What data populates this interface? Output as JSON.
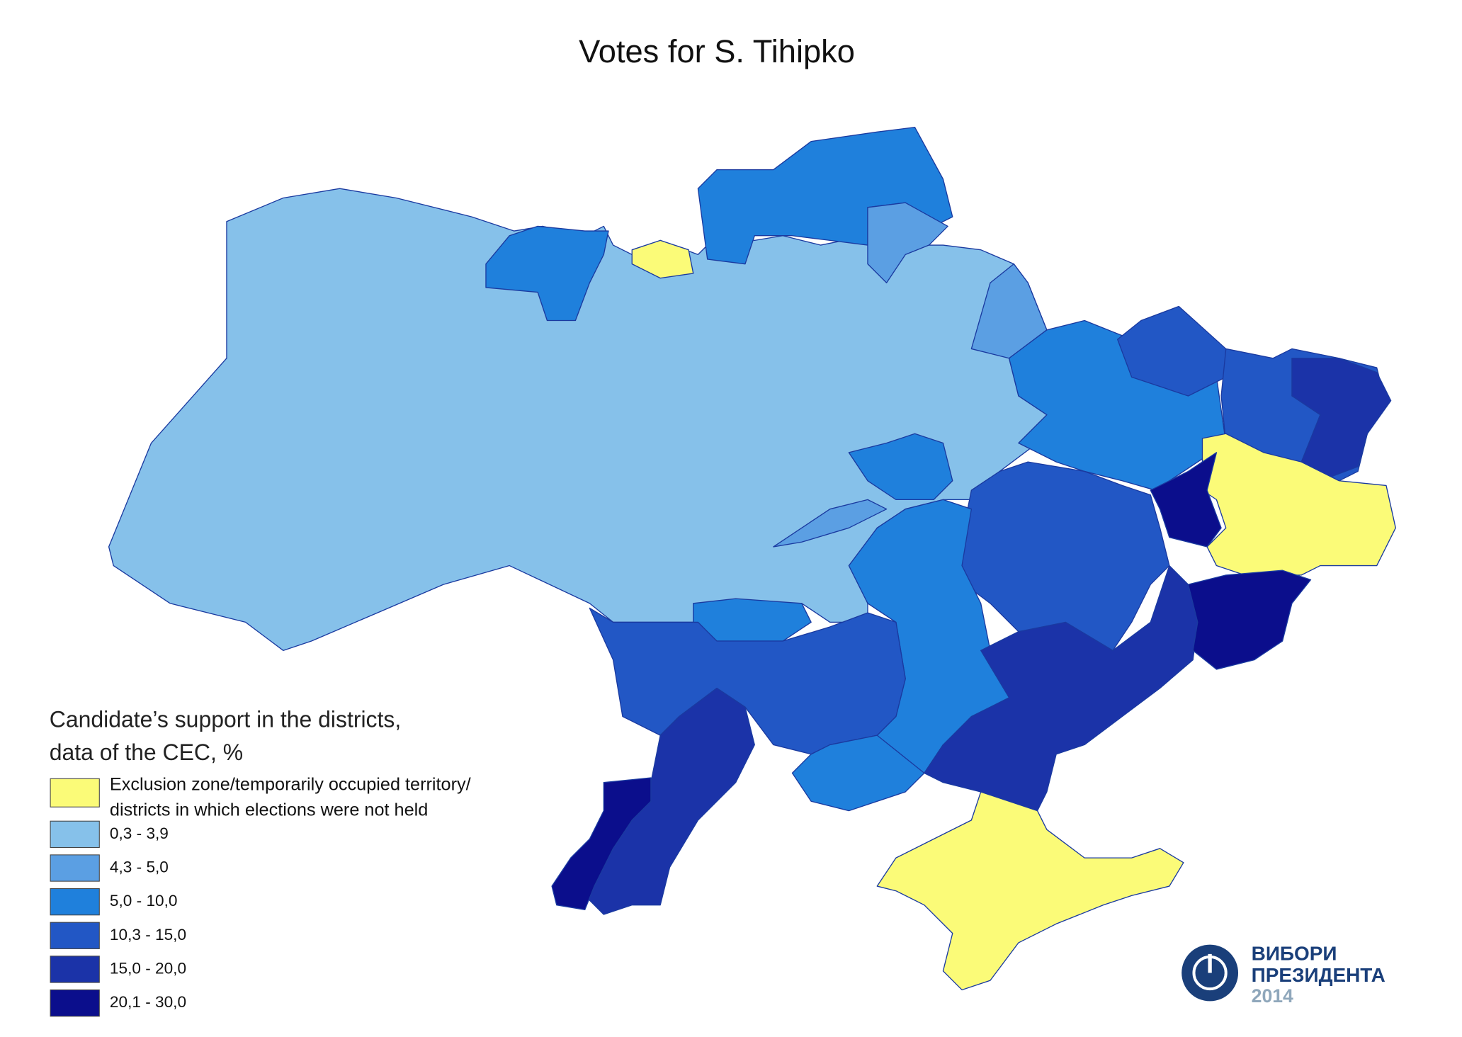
{
  "title": "Votes for S. Tihipko",
  "legend": {
    "title": [
      "Candidate’s support in the districts,",
      "data of the CEC, %"
    ],
    "items": [
      {
        "lines": [
          "Exclusion zone/temporarily occupied territory/",
          "districts in which elections were not held"
        ],
        "color": "#fbfb78"
      },
      {
        "lines": [
          "0,3 - 3,9"
        ],
        "color": "#86c1ea"
      },
      {
        "lines": [
          "4,3 - 5,0"
        ],
        "color": "#5b9fe3"
      },
      {
        "lines": [
          "5,0 - 10,0"
        ],
        "color": "#1f80dc"
      },
      {
        "lines": [
          "10,3 - 15,0"
        ],
        "color": "#2257c5"
      },
      {
        "lines": [
          "15,0 - 20,0"
        ],
        "color": "#1b33a8"
      },
      {
        "lines": [
          "20,1 - 30,0"
        ],
        "color": "#0b0e8c"
      }
    ]
  },
  "logo": {
    "line1": "ВИБОРИ",
    "line2": "ПРЕЗИДЕНТА",
    "year": "2014"
  }
}
